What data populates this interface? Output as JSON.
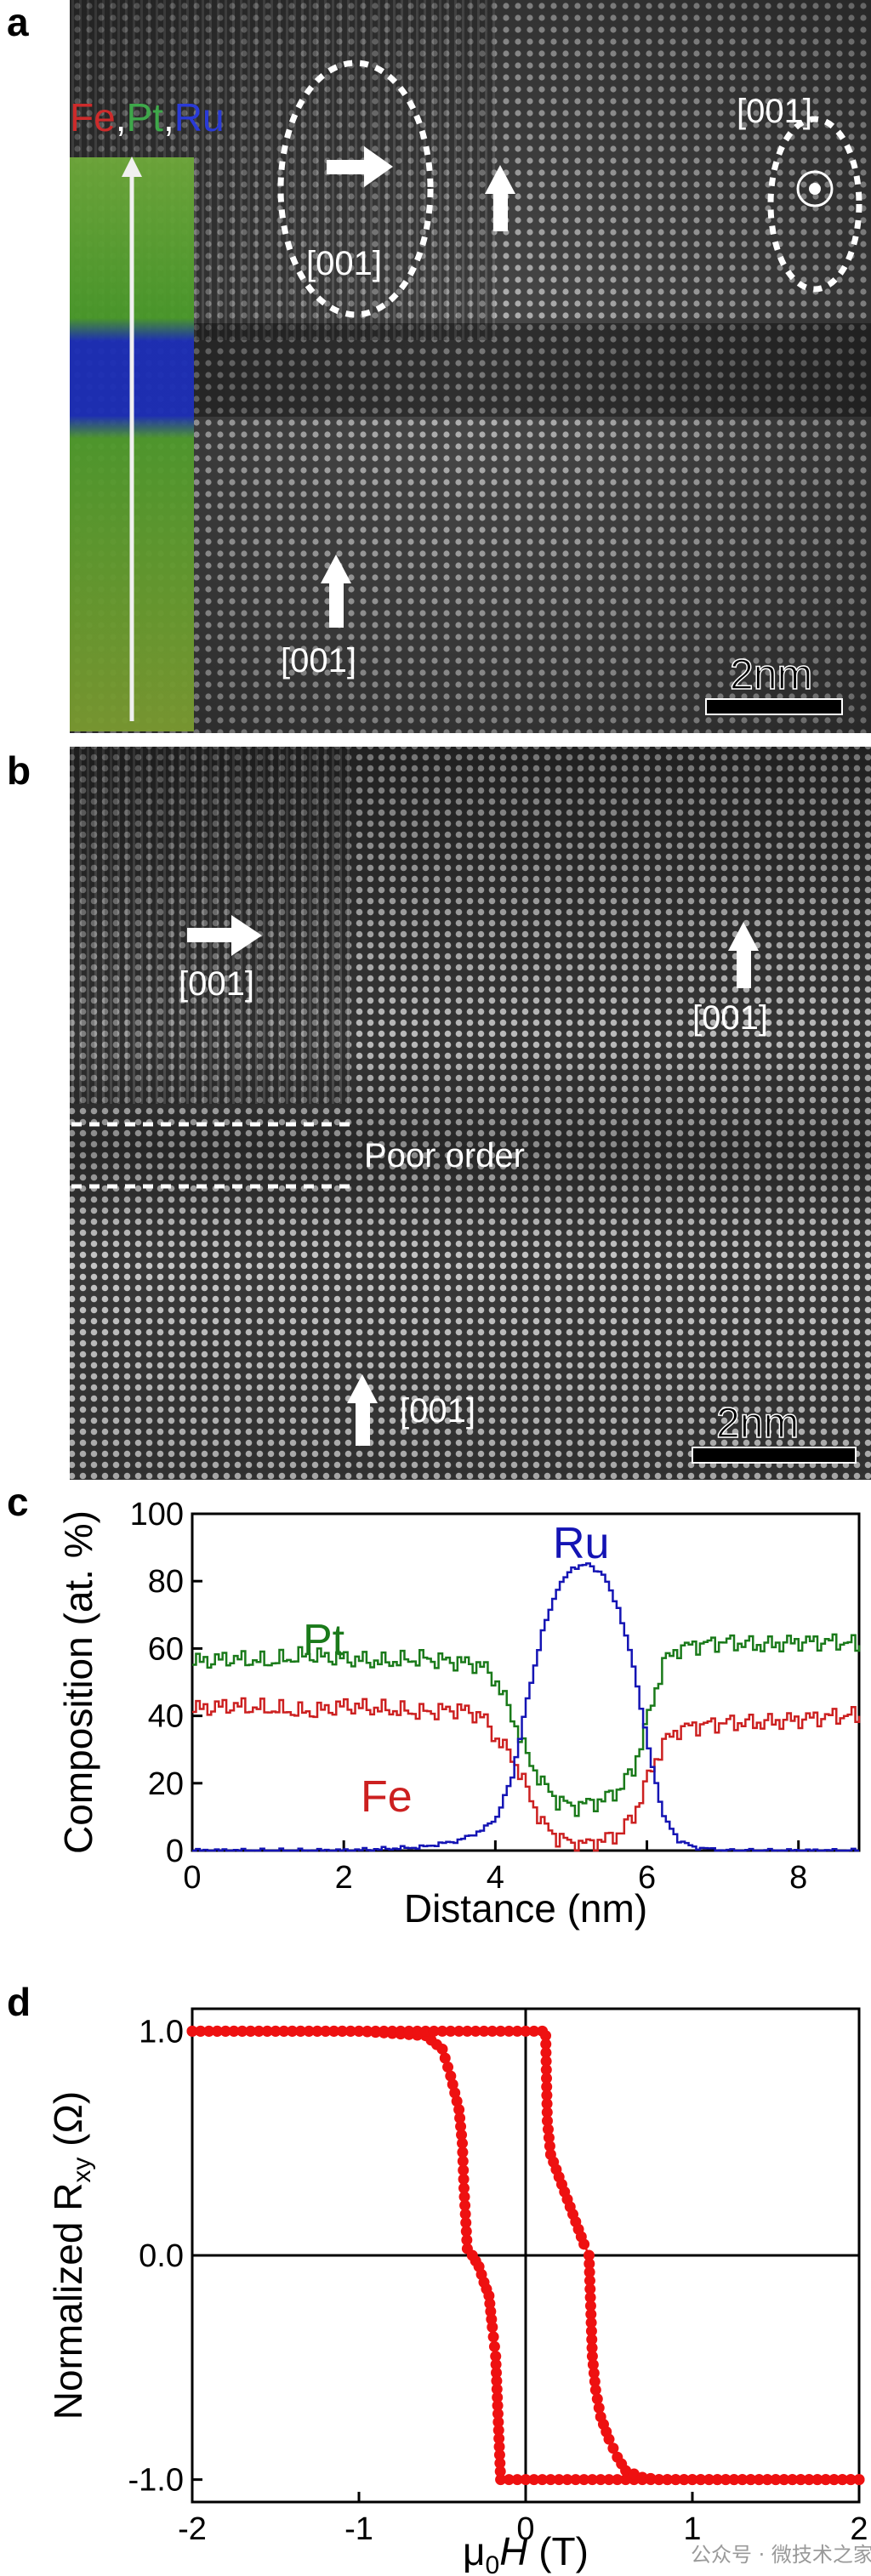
{
  "figure": {
    "panel_a": {
      "letter": "a",
      "zone_axis_labels": [
        "[001]",
        "[001]",
        "[001]"
      ],
      "eds_legend": {
        "fe": "Fe",
        "comma1": ",",
        "pt": "Pt",
        "comma2": ",",
        "ru": "Ru"
      },
      "scale_bar": "2nm",
      "colors": {
        "fe": "#cc2b2b",
        "pt": "#3ea84a",
        "ru": "#2a3bd6"
      }
    },
    "panel_b": {
      "letter": "b",
      "zone_axis_labels": [
        "[001]",
        "[001]",
        "[001]"
      ],
      "annotation": "Poor order",
      "scale_bar": "2nm"
    },
    "watermark": "公众号 · 微技术之家"
  },
  "chart_data": [
    {
      "panel": "c",
      "type": "line",
      "xlabel": "Distance (nm)",
      "ylabel": "Composition (at. %)",
      "xlim": [
        0,
        8.8
      ],
      "ylim": [
        0,
        100
      ],
      "xticks": [
        "0",
        "2",
        "4",
        "6",
        "8"
      ],
      "yticks": [
        "0",
        "20",
        "40",
        "60",
        "80",
        "100"
      ],
      "series": [
        {
          "name": "Pt",
          "color": "#1a7a1a",
          "x": [
            0,
            0.5,
            1,
            1.5,
            2,
            2.5,
            3,
            3.5,
            3.8,
            4.0,
            4.2,
            4.4,
            4.6,
            4.8,
            5.0,
            5.2,
            5.4,
            5.6,
            5.8,
            6.0,
            6.2,
            6.4,
            6.6,
            7,
            7.5,
            8,
            8.5,
            8.8
          ],
          "values": [
            56,
            57,
            56,
            58,
            57,
            56,
            57,
            56,
            55,
            50,
            40,
            28,
            20,
            15,
            13,
            14,
            15,
            18,
            24,
            40,
            56,
            60,
            61,
            62,
            61,
            62,
            62,
            61
          ]
        },
        {
          "name": "Fe",
          "color": "#cc2020",
          "x": [
            0,
            0.5,
            1,
            1.5,
            2,
            2.5,
            3,
            3.5,
            3.8,
            4.0,
            4.2,
            4.4,
            4.6,
            4.8,
            5.0,
            5.2,
            5.4,
            5.6,
            5.8,
            6.0,
            6.2,
            6.4,
            6.6,
            7,
            7.5,
            8,
            8.5,
            8.8
          ],
          "values": [
            42,
            43,
            42,
            41,
            43,
            42,
            41,
            42,
            40,
            33,
            28,
            18,
            8,
            4,
            2,
            2,
            3,
            5,
            10,
            22,
            32,
            36,
            37,
            38,
            38,
            39,
            40,
            40
          ]
        },
        {
          "name": "Ru",
          "color": "#1414b4",
          "x": [
            0,
            1,
            2,
            3,
            3.5,
            3.8,
            4.0,
            4.2,
            4.4,
            4.6,
            4.8,
            5.0,
            5.2,
            5.4,
            5.6,
            5.8,
            6.0,
            6.2,
            6.4,
            6.6,
            7,
            8,
            8.8
          ],
          "values": [
            0,
            0,
            0,
            1,
            3,
            6,
            10,
            22,
            45,
            65,
            78,
            84,
            85,
            82,
            72,
            55,
            30,
            10,
            3,
            1,
            0,
            0,
            0
          ]
        }
      ],
      "labels": {
        "ru": "Ru",
        "pt": "Pt",
        "fe": "Fe"
      }
    },
    {
      "panel": "d",
      "type": "scatter",
      "xlabel_prefix": "μ",
      "xlabel_sub": "0",
      "xlabel_var": "H",
      "xlabel_unit": " (T)",
      "ylabel_prefix": "Normalized R",
      "ylabel_sub": "xy",
      "ylabel_unit": " (Ω)",
      "xlim": [
        -2,
        2
      ],
      "ylim": [
        -1.1,
        1.1
      ],
      "xticks": [
        "-2",
        "-1",
        "0",
        "1",
        "2"
      ],
      "yticks": [
        "1.0",
        "0.0",
        "-1.0"
      ],
      "color": "#ee1111",
      "descending_branch": {
        "x": [
          2.0,
          1.8,
          1.6,
          1.4,
          1.2,
          1.0,
          0.8,
          0.6,
          0.4,
          0.2,
          0.05,
          -0.05,
          -0.15,
          -0.18,
          -0.2,
          -0.22,
          -0.25,
          -0.28,
          -0.32,
          -0.35,
          -0.37,
          -0.38,
          -0.4,
          -0.45,
          -0.5,
          -0.6,
          -0.8,
          -1.0,
          -1.2,
          -1.4,
          -1.6,
          -1.8,
          -2.0
        ],
        "values": [
          -1.0,
          -1.0,
          -1.0,
          -1.0,
          -1.0,
          -1.0,
          -1.0,
          -1.0,
          -1.0,
          -1.0,
          -1.0,
          -1.0,
          -1.0,
          -0.45,
          -0.32,
          -0.18,
          -0.12,
          -0.05,
          0.0,
          0.03,
          0.3,
          0.5,
          0.65,
          0.8,
          0.92,
          0.98,
          0.99,
          1.0,
          1.0,
          1.0,
          1.0,
          1.0,
          1.0
        ]
      },
      "ascending_branch": {
        "x": [
          -2.0,
          -1.6,
          -1.2,
          -0.8,
          -0.4,
          0.0,
          0.1,
          0.12,
          0.13,
          0.15,
          0.2,
          0.25,
          0.3,
          0.35,
          0.38,
          0.4,
          0.42,
          0.45,
          0.5,
          0.55,
          0.6,
          0.7,
          0.8,
          1.0,
          1.2,
          1.4,
          1.6,
          1.8,
          2.0
        ],
        "values": [
          1.0,
          1.0,
          1.0,
          1.0,
          1.0,
          1.0,
          1.0,
          0.98,
          0.6,
          0.45,
          0.35,
          0.25,
          0.15,
          0.05,
          0.0,
          -0.45,
          -0.6,
          -0.72,
          -0.82,
          -0.9,
          -0.96,
          -0.99,
          -1.0,
          -1.0,
          -1.0,
          -1.0,
          -1.0,
          -1.0,
          -1.0
        ]
      }
    }
  ]
}
